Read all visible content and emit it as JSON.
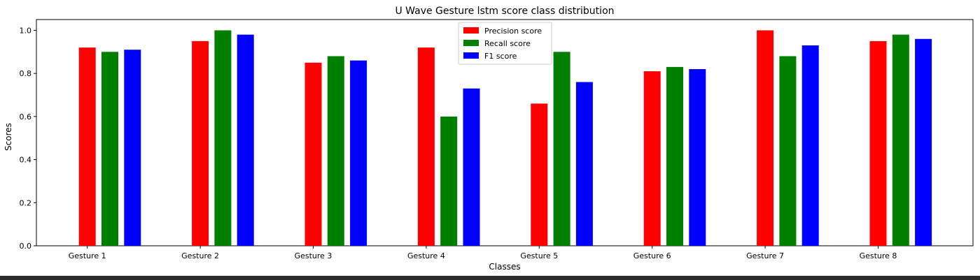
{
  "chart_data": {
    "type": "bar",
    "title": "U Wave Gesture lstm score class distribution",
    "xlabel": "Classes",
    "ylabel": "Scores",
    "ylim": [
      0,
      1.05
    ],
    "yticks": [
      0.0,
      0.2,
      0.4,
      0.6,
      0.8,
      1.0
    ],
    "ytick_labels": [
      "0.0",
      "0.2",
      "0.4",
      "0.6",
      "0.8",
      "1.0"
    ],
    "grid": false,
    "legend_position": "top-center",
    "categories": [
      "Gesture 1",
      "Gesture 2",
      "Gesture 3",
      "Gesture 4",
      "Gesture 5",
      "Gesture 6",
      "Gesture 7",
      "Gesture 8"
    ],
    "series": [
      {
        "name": "Precision score",
        "color": "#ff0000",
        "values": [
          0.92,
          0.95,
          0.85,
          0.92,
          0.66,
          0.81,
          1.0,
          0.95
        ]
      },
      {
        "name": "Recall score",
        "color": "#008000",
        "values": [
          0.9,
          1.0,
          0.88,
          0.6,
          0.9,
          0.83,
          0.88,
          0.98
        ]
      },
      {
        "name": "F1 score",
        "color": "#0000ff",
        "values": [
          0.91,
          0.98,
          0.86,
          0.73,
          0.76,
          0.82,
          0.93,
          0.96
        ]
      }
    ]
  }
}
